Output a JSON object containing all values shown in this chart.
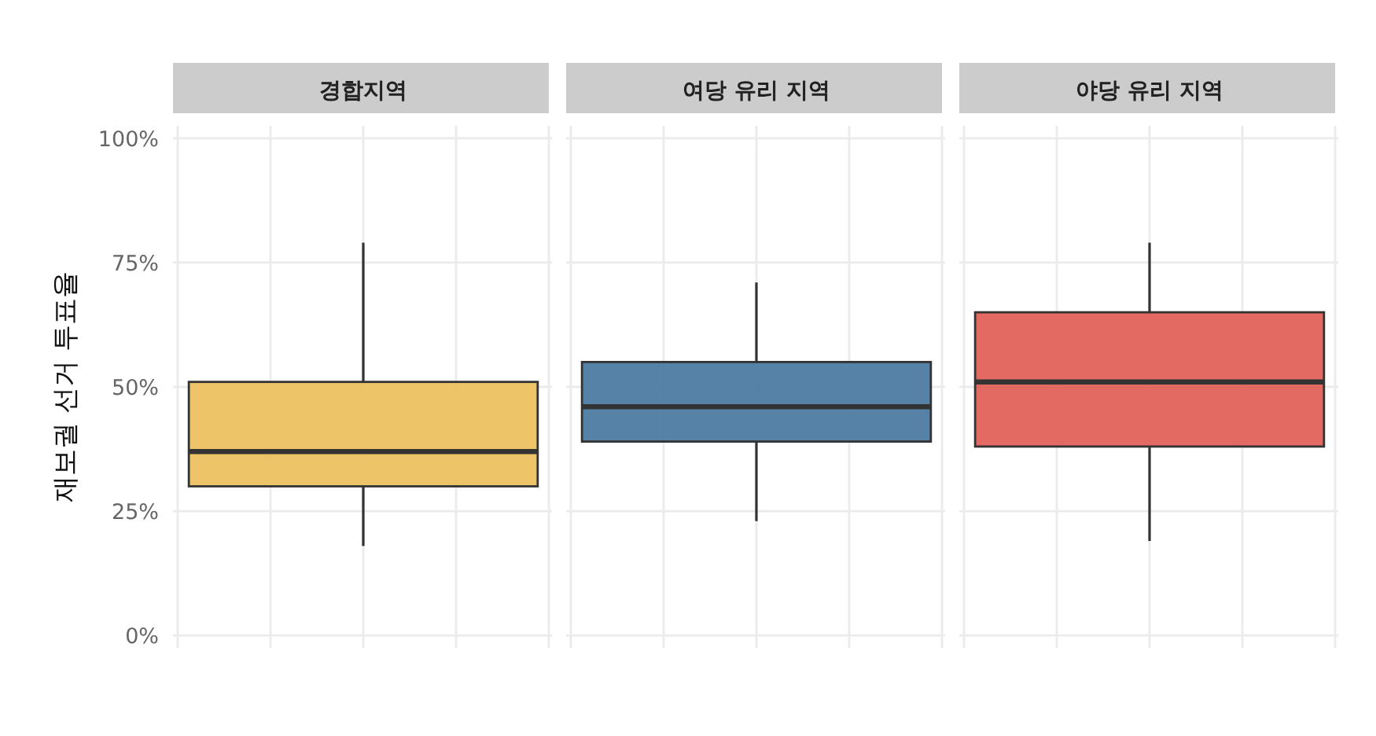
{
  "chart_data": {
    "type": "box",
    "ylabel": "재보궐 선거 투표율",
    "categories": [
      "경합지역",
      "여당 유리 지역",
      "야당 유리 지역"
    ],
    "colors": [
      "#ecc15f",
      "#4e7ba3",
      "#e0625b"
    ],
    "boxes": [
      {
        "low": 18,
        "q1": 30,
        "median": 37,
        "q3": 51,
        "high": 79
      },
      {
        "low": 23,
        "q1": 39,
        "median": 46,
        "q3": 55,
        "high": 71
      },
      {
        "low": 19,
        "q1": 38,
        "median": 51,
        "q3": 65,
        "high": 79
      }
    ],
    "ylim": [
      -2.5,
      102.5
    ],
    "yticks": [
      {
        "value": 0,
        "label": "0%"
      },
      {
        "value": 25,
        "label": "25%"
      },
      {
        "value": 50,
        "label": "50%"
      },
      {
        "value": 75,
        "label": "75%"
      },
      {
        "value": 100,
        "label": "100%"
      }
    ],
    "grid": true
  }
}
